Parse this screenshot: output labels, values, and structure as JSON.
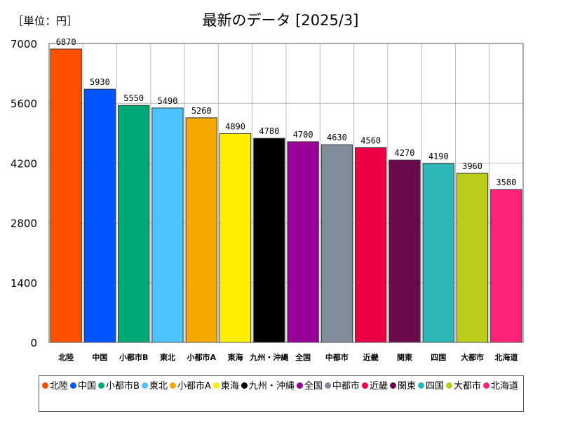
{
  "header": {
    "unit_label": "［単位：円］",
    "title": "最新のデータ [2025/3]"
  },
  "chart_data": {
    "type": "bar",
    "title": "最新のデータ [2025/3]",
    "unit": "［単位：円］",
    "xlabel": "",
    "ylabel": "",
    "categories": [
      "北陸",
      "中国",
      "小都市B",
      "東北",
      "小都市A",
      "東海",
      "九州・沖縄",
      "全国",
      "中都市",
      "近畿",
      "関東",
      "四国",
      "大都市",
      "北海道"
    ],
    "values": [
      6870,
      5930,
      5550,
      5490,
      5260,
      4890,
      4780,
      4700,
      4630,
      4560,
      4270,
      4190,
      3960,
      3580
    ],
    "data_labels": [
      "6870",
      "5930",
      "5550",
      "5490",
      "5260",
      "4890",
      "4780",
      "4700",
      "4630",
      "4560",
      "4270",
      "4190",
      "3960",
      "3580"
    ],
    "colors": [
      "#FF5000",
      "#0055FF",
      "#00AA77",
      "#4CC2FF",
      "#F4A800",
      "#FFEE00",
      "#000000",
      "#990099",
      "#7F8C99",
      "#EE0044",
      "#6B0A4A",
      "#2DB8B8",
      "#BBCC1A",
      "#FF2277"
    ],
    "ylim": [
      0,
      7000
    ],
    "y_ticks": [
      0,
      1400,
      2800,
      4200,
      5600,
      7000
    ],
    "y_tick_labels": [
      "0",
      "1400",
      "2800",
      "4200",
      "5600",
      "7000"
    ],
    "grid": true,
    "legend_position": "bottom"
  }
}
